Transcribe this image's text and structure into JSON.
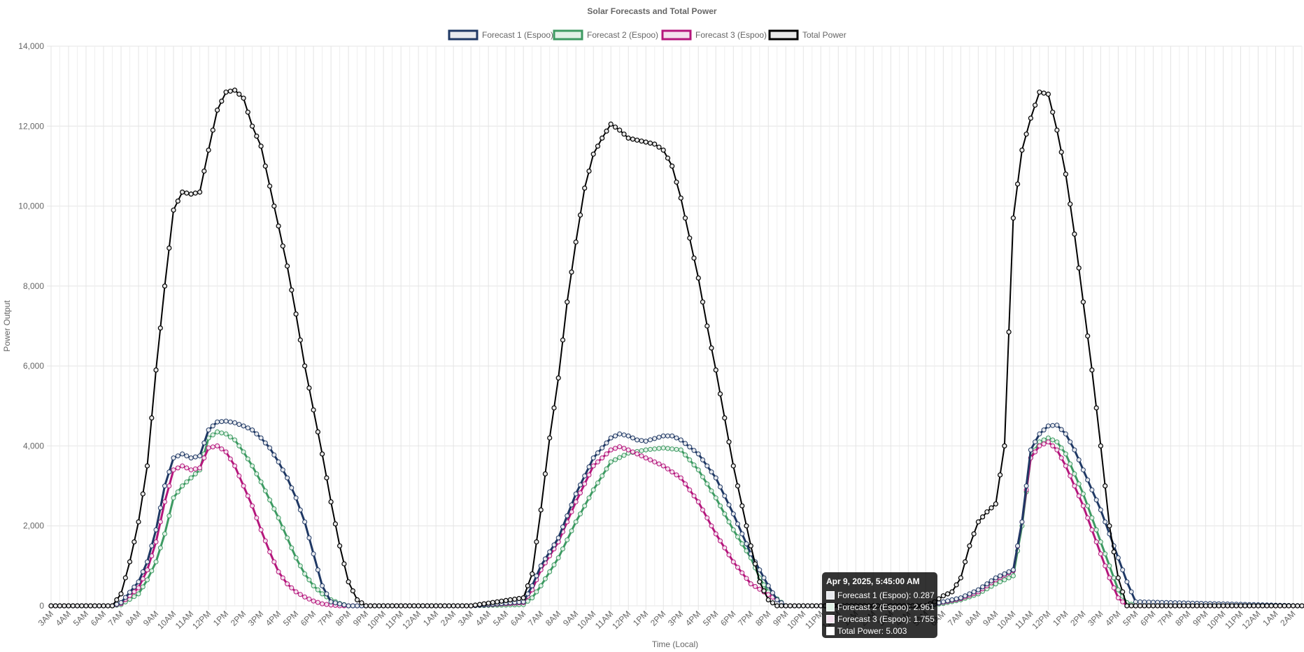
{
  "chart_data": {
    "type": "line",
    "title": "Solar Forecasts and Total Power",
    "xlabel": "Time (Local)",
    "ylabel": "Power Output",
    "ylim": [
      0,
      14000
    ],
    "yticks": [
      "0",
      "2,000",
      "4,000",
      "6,000",
      "8,000",
      "10,000",
      "12,000",
      "14,000"
    ],
    "grid": true,
    "legend_position": "top",
    "x_labels": [
      "3AM",
      "4AM",
      "5AM",
      "6AM",
      "7AM",
      "8AM",
      "9AM",
      "10AM",
      "11AM",
      "12PM",
      "1PM",
      "2PM",
      "3PM",
      "4PM",
      "5PM",
      "6PM",
      "7PM",
      "8PM",
      "9PM",
      "10PM",
      "11PM",
      "12AM",
      "1AM",
      "2AM",
      "3AM",
      "4AM",
      "5AM",
      "6AM",
      "7AM",
      "8AM",
      "9AM",
      "10AM",
      "11AM",
      "12PM",
      "1PM",
      "2PM",
      "3PM",
      "4PM",
      "5PM",
      "6PM",
      "7PM",
      "8PM",
      "9PM",
      "10PM",
      "11PM",
      "12AM",
      "1AM",
      "2AM",
      "3AM",
      "4AM",
      "5AM",
      "6AM",
      "7AM",
      "8AM",
      "9AM",
      "10AM",
      "11AM",
      "12PM",
      "1PM",
      "2PM",
      "3PM",
      "4PM",
      "5PM",
      "6PM",
      "7PM",
      "8PM",
      "9PM",
      "10PM",
      "11PM",
      "12AM",
      "1AM",
      "2AM"
    ],
    "x_hours": [
      0,
      1,
      2,
      3,
      4,
      5,
      6,
      7,
      8,
      9,
      10,
      11,
      12,
      13,
      14,
      15,
      16,
      17,
      18,
      19,
      20,
      21,
      22,
      23,
      24,
      25,
      26,
      27,
      28,
      29,
      30,
      31,
      32,
      33,
      34,
      35,
      36,
      37,
      38,
      39,
      40,
      41,
      42,
      43,
      44,
      45,
      46,
      47,
      48,
      49,
      50,
      51,
      52,
      53,
      54,
      55,
      56,
      57,
      58,
      59,
      60,
      61,
      62,
      63,
      64,
      65,
      66,
      67,
      68,
      69,
      70,
      71
    ],
    "series": [
      {
        "name": "Forecast 1 (Espoo)",
        "color": "#1f3864",
        "fill": "#e8eaee",
        "x": [
          0,
          3.5,
          4,
          5,
          5.5,
          6,
          6.5,
          7,
          7.5,
          8,
          8.5,
          9,
          9.5,
          10,
          10.5,
          11,
          11.5,
          12,
          12.5,
          13,
          13.5,
          14,
          14.5,
          15,
          15.5,
          16,
          16.5,
          17,
          18,
          24,
          27,
          27.5,
          28,
          29,
          30,
          31,
          32,
          32.5,
          33,
          33.5,
          34,
          35,
          35.5,
          36,
          37,
          38,
          39,
          40,
          41,
          41.5,
          42,
          48,
          50,
          51,
          52,
          53,
          54,
          55,
          55.5,
          56,
          56.5,
          57,
          57.5,
          58,
          58.5,
          59,
          59.5,
          60,
          60.5,
          61,
          61.5,
          62,
          71.5
        ],
        "y": [
          0,
          0,
          80,
          600,
          1100,
          1900,
          3000,
          3700,
          3800,
          3700,
          3750,
          4400,
          4600,
          4620,
          4580,
          4500,
          4400,
          4200,
          3950,
          3600,
          3200,
          2700,
          2100,
          1300,
          500,
          100,
          50,
          0,
          0,
          0,
          100,
          500,
          1000,
          1700,
          2800,
          3700,
          4200,
          4300,
          4250,
          4150,
          4120,
          4250,
          4250,
          4150,
          3800,
          3200,
          2300,
          1300,
          500,
          150,
          0,
          0,
          0,
          100,
          200,
          400,
          700,
          900,
          2100,
          3900,
          4300,
          4500,
          4520,
          4300,
          3900,
          3400,
          2900,
          2400,
          1800,
          1200,
          600,
          100,
          0
        ]
      },
      {
        "name": "Forecast 2 (Espoo)",
        "color": "#3d9a62",
        "fill": "#e1f1e6",
        "x": [
          0,
          3.5,
          4,
          5,
          5.5,
          6,
          6.5,
          7,
          7.5,
          8,
          8.5,
          9,
          9.5,
          10,
          10.5,
          11,
          11.5,
          12,
          12.5,
          13,
          13.5,
          14,
          14.5,
          15,
          15.5,
          16,
          16.5,
          17,
          18,
          24,
          27,
          27.5,
          28,
          29,
          30,
          31,
          32,
          33,
          34,
          35,
          36,
          37,
          38,
          39,
          40,
          40.5,
          41,
          42,
          48,
          50,
          51,
          52,
          53,
          54,
          55,
          55.5,
          56,
          56.5,
          57,
          57.5,
          58,
          58.5,
          59,
          59.5,
          60,
          60.5,
          61,
          61.5,
          62,
          71.5
        ],
        "y": [
          0,
          0,
          30,
          300,
          650,
          1100,
          1800,
          2700,
          3000,
          3200,
          3400,
          4200,
          4350,
          4300,
          4150,
          3850,
          3500,
          3100,
          2650,
          2200,
          1700,
          1200,
          800,
          500,
          300,
          150,
          60,
          0,
          0,
          0,
          30,
          200,
          500,
          1200,
          2100,
          2900,
          3600,
          3820,
          3900,
          3950,
          3900,
          3400,
          2700,
          1900,
          1200,
          700,
          350,
          0,
          0,
          0,
          60,
          150,
          300,
          550,
          750,
          2000,
          3700,
          4100,
          4200,
          4100,
          3800,
          3300,
          2800,
          2200,
          1600,
          1000,
          400,
          80,
          0,
          0
        ]
      },
      {
        "name": "Forecast 3 (Espoo)",
        "color": "#b5177c",
        "fill": "#f4e1ee",
        "x": [
          0,
          3.5,
          4,
          5,
          5.5,
          6,
          6.5,
          7,
          7.5,
          8,
          8.5,
          9,
          9.5,
          10,
          10.5,
          11,
          11.5,
          12,
          12.5,
          13,
          13.5,
          14,
          14.5,
          15,
          15.5,
          16,
          16.5,
          17,
          18,
          24,
          27,
          27.5,
          28,
          29,
          30,
          31,
          32,
          32.5,
          33,
          34,
          35,
          36,
          37,
          38,
          39,
          40,
          41,
          41.5,
          42,
          48,
          50,
          51,
          52,
          53,
          54,
          55,
          55.5,
          56,
          56.5,
          57,
          57.5,
          58,
          58.5,
          59,
          59.5,
          60,
          60.5,
          61,
          61.5,
          62,
          71.5
        ],
        "y": [
          0,
          0,
          60,
          450,
          900,
          1600,
          2600,
          3400,
          3500,
          3400,
          3450,
          3950,
          4000,
          3850,
          3500,
          3000,
          2500,
          1900,
          1350,
          850,
          550,
          350,
          220,
          120,
          50,
          20,
          0,
          0,
          0,
          0,
          80,
          400,
          900,
          1600,
          2600,
          3500,
          3900,
          3980,
          3900,
          3700,
          3500,
          3200,
          2600,
          1800,
          1100,
          550,
          280,
          150,
          0,
          0,
          0,
          90,
          180,
          350,
          650,
          880,
          2100,
          3700,
          4000,
          4100,
          3900,
          3500,
          3000,
          2500,
          1900,
          1300,
          700,
          200,
          0,
          0,
          0
        ]
      },
      {
        "name": "Total Power",
        "color": "#000000",
        "fill": "#e8e8e8",
        "x": [
          0,
          3.5,
          4,
          4.5,
          5,
          5.5,
          6,
          6.5,
          7,
          7.5,
          8,
          8.5,
          9,
          9.5,
          10,
          10.5,
          11,
          11.5,
          12,
          12.5,
          13,
          13.5,
          14,
          14.5,
          15,
          15.5,
          16,
          16.5,
          17,
          17.5,
          18,
          24,
          27,
          27.5,
          28,
          28.5,
          29,
          29.5,
          30,
          30.5,
          31,
          31.5,
          32,
          32.5,
          33,
          33.5,
          34,
          34.5,
          35,
          35.5,
          36,
          36.5,
          37,
          37.5,
          38,
          38.5,
          39,
          39.5,
          40,
          40.5,
          41,
          41.5,
          42,
          48,
          50,
          50.5,
          51,
          51.5,
          52,
          52.5,
          53,
          53.5,
          54,
          54.5,
          55,
          55.5,
          56,
          56.5,
          57,
          57.5,
          58,
          58.5,
          59,
          59.5,
          60,
          60.5,
          61,
          61.5,
          62,
          71.5
        ],
        "y": [
          0,
          0,
          300,
          1100,
          2100,
          3500,
          5900,
          8000,
          9900,
          10350,
          10300,
          10350,
          11400,
          12400,
          12850,
          12900,
          12700,
          12000,
          11500,
          10500,
          9500,
          8500,
          7300,
          6000,
          4900,
          3800,
          2600,
          1500,
          600,
          150,
          0,
          0,
          200,
          800,
          2400,
          4200,
          5700,
          7600,
          9100,
          10450,
          11300,
          11700,
          12050,
          11900,
          11700,
          11650,
          11600,
          11550,
          11400,
          11000,
          10200,
          9200,
          8200,
          7000,
          5900,
          4700,
          3500,
          2500,
          1500,
          600,
          150,
          0,
          0,
          0,
          0,
          100,
          250,
          350,
          700,
          1500,
          2100,
          2350,
          2550,
          4000,
          9700,
          11400,
          12200,
          12850,
          12800,
          11900,
          10800,
          9300,
          7600,
          5900,
          4000,
          2000,
          700,
          0,
          0,
          0
        ]
      }
    ]
  },
  "tooltip": {
    "title": "Apr 9, 2025, 5:45:00 AM",
    "rows": [
      {
        "label": "Forecast 1 (Espoo): 0.287",
        "color": "#e8eaee"
      },
      {
        "label": "Forecast 2 (Espoo): 2.961",
        "color": "#e1f1e6"
      },
      {
        "label": "Forecast 3 (Espoo): 1.755",
        "color": "#f4e1ee"
      },
      {
        "label": "Total Power: 5.003",
        "color": "#ffffff"
      }
    ]
  }
}
